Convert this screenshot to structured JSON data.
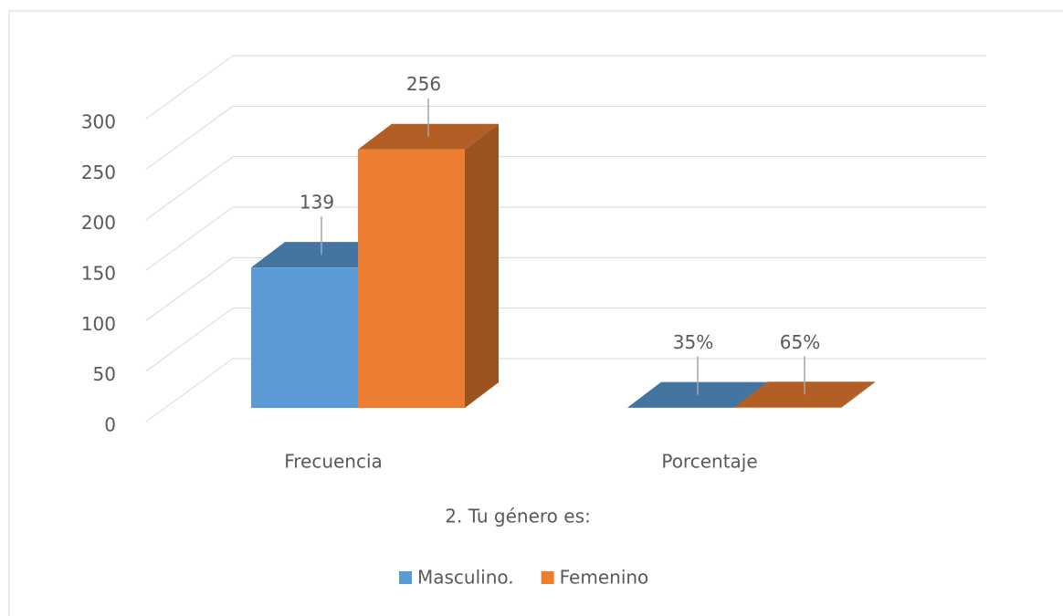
{
  "chart_data": {
    "type": "bar3d",
    "title": "2. Tu género es:",
    "categories": [
      "Frecuencia",
      "Porcentaje"
    ],
    "series": [
      {
        "name": "Masculino.",
        "color": "#5b9bd5",
        "values": [
          139,
          0.35
        ],
        "value_labels": [
          "139",
          "35%"
        ]
      },
      {
        "name": "Femenino",
        "color": "#ed7d31",
        "values": [
          256,
          0.65
        ],
        "value_labels": [
          "256",
          "65%"
        ]
      }
    ],
    "ylim": [
      0,
      300
    ],
    "yticks": [
      0,
      50,
      100,
      150,
      200,
      250,
      300
    ],
    "grid": true,
    "legend": "bottom"
  }
}
